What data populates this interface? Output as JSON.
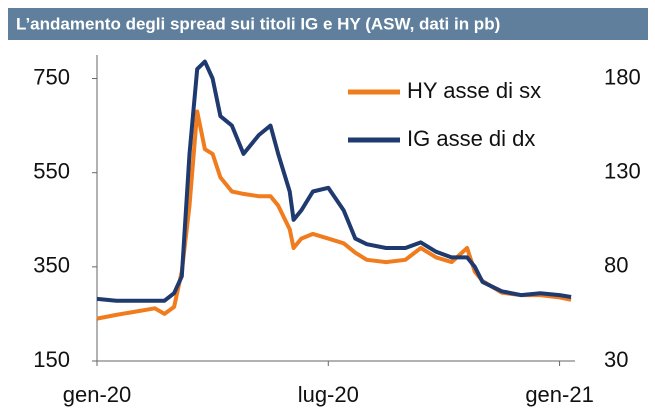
{
  "chart_data": {
    "type": "line",
    "title": "L’andamento degli spread sui titoli IG e HY (ASW, dati in pb)",
    "x": [
      0,
      0.5,
      1,
      1.5,
      1.75,
      2,
      2.2,
      2.4,
      2.6,
      2.8,
      3,
      3.2,
      3.5,
      3.8,
      4.2,
      4.5,
      4.7,
      5,
      5.1,
      5.3,
      5.6,
      6,
      6.4,
      6.7,
      7,
      7.5,
      8,
      8.4,
      8.8,
      9.2,
      9.6,
      9.8,
      10,
      10.5,
      11,
      11.5,
      12,
      12.3
    ],
    "series": [
      {
        "name": "HY asse di sx",
        "color": "#f07c1e",
        "values": [
          240,
          248,
          255,
          262,
          250,
          265,
          340,
          480,
          680,
          600,
          590,
          540,
          510,
          505,
          500,
          500,
          480,
          430,
          390,
          410,
          420,
          410,
          400,
          380,
          365,
          360,
          365,
          390,
          370,
          360,
          390,
          340,
          320,
          295,
          290,
          290,
          285,
          280
        ]
      },
      {
        "name": "IG asse di dx",
        "color": "#1f3a6e",
        "axis": "y2",
        "values": [
          63,
          62,
          62,
          62,
          62,
          66,
          75,
          140,
          185,
          189,
          180,
          160,
          155,
          140,
          150,
          155,
          140,
          120,
          105,
          110,
          120,
          122,
          110,
          95,
          92,
          90,
          90,
          93,
          88,
          85,
          85,
          80,
          72,
          67,
          65,
          66,
          65,
          64
        ]
      }
    ],
    "xlim": [
      0,
      12.4
    ],
    "xticks": [
      {
        "value": 0,
        "label": "gen-20"
      },
      {
        "value": 6,
        "label": "lug-20"
      },
      {
        "value": 12,
        "label": "gen-21"
      }
    ],
    "ylim": [
      150,
      800
    ],
    "yticks": [
      150,
      350,
      550,
      750
    ],
    "y2lim": [
      30,
      192.5
    ],
    "y2ticks": [
      30,
      80,
      130,
      180
    ]
  }
}
